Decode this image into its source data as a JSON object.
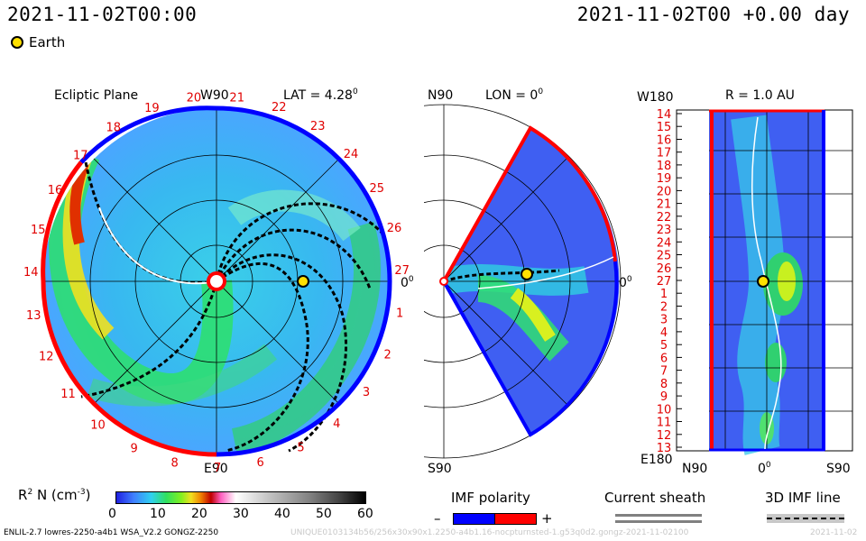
{
  "header": {
    "datetime": "2021-11-02T00:00",
    "elapsed": "2021-11-02T00 +0.00 day",
    "legend_earth": "Earth"
  },
  "ecliptic_panel": {
    "title": "Ecliptic Plane",
    "top_label": "W90",
    "lat_label": "LAT = 4.28",
    "lat_sup": "0",
    "bottom_label": "E90",
    "right_label": "0",
    "right_sup": "0",
    "carrington_ticks": [
      "20",
      "21",
      "22",
      "23",
      "24",
      "25",
      "26",
      "27",
      "1",
      "2",
      "3",
      "4",
      "5",
      "6",
      "7",
      "8",
      "9",
      "10",
      "11",
      "12",
      "13",
      "14",
      "15",
      "16",
      "17",
      "18",
      "19"
    ]
  },
  "meridional_panel": {
    "top_left_label": "N90",
    "lon_label": "LON = 0",
    "lon_sup": "0",
    "right_label": "0",
    "right_sup": "0",
    "bottom_label": "S90"
  },
  "radial_panel": {
    "r_label": "R = 1.0 AU",
    "top_label": "W180",
    "bottom_label": "E180",
    "x_left": "N90",
    "x_mid": "0",
    "x_mid_sup": "0",
    "x_right": "S90",
    "rows": [
      "14",
      "15",
      "16",
      "17",
      "18",
      "19",
      "20",
      "21",
      "22",
      "23",
      "24",
      "25",
      "26",
      "27",
      "1",
      "2",
      "3",
      "4",
      "5",
      "6",
      "7",
      "8",
      "9",
      "10",
      "11",
      "12",
      "13"
    ]
  },
  "colorbar": {
    "label_prefix": "R",
    "label_sup": "2",
    "label_mid": " N (cm",
    "label_sup2": "-3",
    "label_end": ")",
    "ticks": [
      "0",
      "10",
      "20",
      "30",
      "40",
      "50",
      "60"
    ],
    "range": [
      0,
      60
    ]
  },
  "imf_legend": {
    "title": "IMF polarity",
    "minus": "–",
    "plus": "+",
    "neg_color": "#0000ff",
    "pos_color": "#ff0000"
  },
  "sheath_legend": {
    "title": "Current sheath"
  },
  "imf_line_legend": {
    "title": "3D IMF line"
  },
  "footer": {
    "left": "ENLIL-2.7 lowres-2250-a4b1 WSA_V2.2 GONGZ-2250",
    "right": "UNIQUE0103134b56/256x30x90x1.2250-a4b1.16-nocpturnsted-1.g53q0d2.gongz-2021-11-02100",
    "date": "2021-11-02"
  },
  "colors": {
    "earth": "#ffe000",
    "positive_polarity": "#ff0000",
    "negative_polarity": "#0000ff"
  }
}
